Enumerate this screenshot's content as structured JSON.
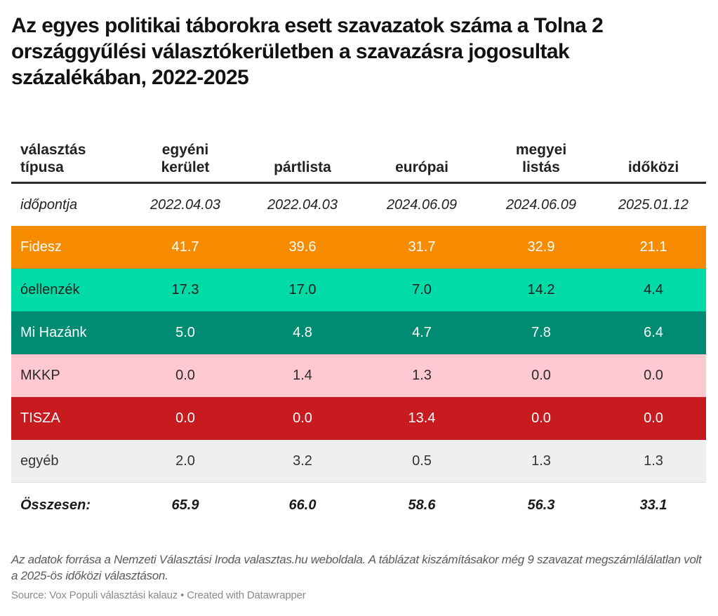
{
  "title": "Az egyes politikai táborokra esett szavazatok száma a Tolna 2 országgyűlési választókerületben a szavazásra jogosultak százalékában, 2022-2025",
  "table": {
    "header": {
      "label_line1": "választás",
      "label_line2": "típusa",
      "columns": [
        {
          "line1": "egyéni",
          "line2": "kerület"
        },
        {
          "line1": "",
          "line2": "pártlista"
        },
        {
          "line1": "",
          "line2": "európai"
        },
        {
          "line1": "megyei",
          "line2": "listás"
        },
        {
          "line1": "",
          "line2": "időközi"
        }
      ]
    },
    "date_row": {
      "label": "időpontja",
      "values": [
        "2022.04.03",
        "2022.04.03",
        "2024.06.09",
        "2024.06.09",
        "2025.01.12"
      ]
    },
    "rows": [
      {
        "party": "Fidesz",
        "bg": "#f78b00",
        "fg": "#ffffff",
        "values": [
          "41.7",
          "39.6",
          "31.7",
          "32.9",
          "21.1"
        ]
      },
      {
        "party": "óellenzék",
        "bg": "#00dba8",
        "fg": "#1d1d1d",
        "values": [
          "17.3",
          "17.0",
          "7.0",
          "14.2",
          "4.4"
        ]
      },
      {
        "party": "Mi Hazánk",
        "bg": "#008c72",
        "fg": "#ffffff",
        "values": [
          "5.0",
          "4.8",
          "4.7",
          "7.8",
          "6.4"
        ]
      },
      {
        "party": "MKKP",
        "bg": "#ffc9d2",
        "fg": "#2a2a2a",
        "values": [
          "0.0",
          "1.4",
          "1.3",
          "0.0",
          "0.0"
        ]
      },
      {
        "party": "TISZA",
        "bg": "#c71b1f",
        "fg": "#ffffff",
        "values": [
          "0.0",
          "0.0",
          "13.4",
          "0.0",
          "0.0"
        ]
      },
      {
        "party": "egyéb",
        "bg": "#efefef",
        "fg": "#333333",
        "values": [
          "2.0",
          "3.2",
          "0.5",
          "1.3",
          "1.3"
        ]
      }
    ],
    "total_row": {
      "label": "Összesen:",
      "values": [
        "65.9",
        "66.0",
        "58.6",
        "56.3",
        "33.1"
      ]
    }
  },
  "notes": "Az adatok forrása a Nemzeti Választási Iroda valasztas.hu weboldala. A táblázat kiszámításakor még 9 szavazat megszámlálálatlan volt a 2025-ös időközi választáson.",
  "source": "Source: Vox Populi választási kalauz • Created with Datawrapper"
}
